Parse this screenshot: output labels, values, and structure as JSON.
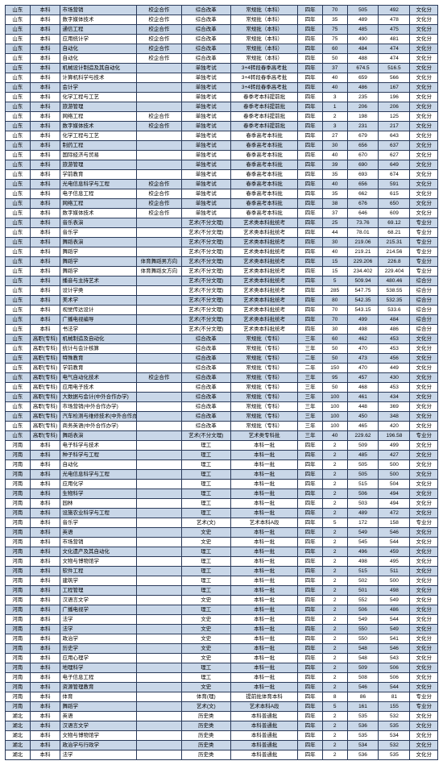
{
  "table": {
    "background_color": "#ffffff",
    "alt_row_color": "#c9d7e8",
    "border_color": "#2a3a5a",
    "font_size": 6.5,
    "columns": [
      {
        "key": "province",
        "align": "center"
      },
      {
        "key": "level",
        "align": "center"
      },
      {
        "key": "major",
        "align": "left"
      },
      {
        "key": "coop",
        "align": "center"
      },
      {
        "key": "reform",
        "align": "center"
      },
      {
        "key": "batch",
        "align": "center"
      },
      {
        "key": "years",
        "align": "center"
      },
      {
        "key": "plan",
        "align": "center"
      },
      {
        "key": "score1",
        "align": "center"
      },
      {
        "key": "score2",
        "align": "center"
      },
      {
        "key": "category",
        "align": "center"
      }
    ],
    "rows": [
      [
        "山东",
        "本科",
        "市场营销",
        "校企合作",
        "综合改革",
        "常规批（本科）",
        "四年",
        "70",
        "505",
        "492",
        "文化分"
      ],
      [
        "山东",
        "本科",
        "数字媒体技术",
        "校企合作",
        "综合改革",
        "常规批（本科）",
        "四年",
        "35",
        "489",
        "478",
        "文化分"
      ],
      [
        "山东",
        "本科",
        "通信工程",
        "校企合作",
        "综合改革",
        "常规批（本科）",
        "四年",
        "75",
        "485",
        "475",
        "文化分"
      ],
      [
        "山东",
        "本科",
        "应用统计学",
        "校企合作",
        "综合改革",
        "常规批（本科）",
        "四年",
        "75",
        "490",
        "481",
        "文化分"
      ],
      [
        "山东",
        "本科",
        "自动化",
        "校企合作",
        "综合改革",
        "常规批（本科）",
        "四年",
        "60",
        "484",
        "474",
        "文化分"
      ],
      [
        "山东",
        "本科",
        "自动化",
        "校企合作",
        "综合改革",
        "常规批（本科）",
        "四年",
        "50",
        "488",
        "474",
        "文化分"
      ],
      [
        "山东",
        "本科",
        "机械设计制造及其自动化",
        "",
        "单独考试",
        "3+4转段春季高考批",
        "四年",
        "37",
        "674.5",
        "516.5",
        "文化分"
      ],
      [
        "山东",
        "本科",
        "计算机科学与技术",
        "",
        "单独考试",
        "3+4转段春季高考批",
        "四年",
        "40",
        "659",
        "566",
        "文化分"
      ],
      [
        "山东",
        "本科",
        "会计学",
        "",
        "单独考试",
        "3+4转段春季高考批",
        "四年",
        "40",
        "486",
        "167",
        "文化分"
      ],
      [
        "山东",
        "本科",
        "化学工程与工艺",
        "",
        "单独考试",
        "春季考本科提前批",
        "四年",
        "3",
        "235",
        "196",
        "文化分"
      ],
      [
        "山东",
        "本科",
        "旅游管理",
        "",
        "单独考试",
        "春季考本科提前批",
        "四年",
        "1",
        "206",
        "206",
        "文化分"
      ],
      [
        "山东",
        "本科",
        "网络工程",
        "校企合作",
        "单独考试",
        "春季考本科提前批",
        "四年",
        "2",
        "198",
        "125",
        "文化分"
      ],
      [
        "山东",
        "本科",
        "数字媒体技术",
        "校企合作",
        "单独考试",
        "春季考本科提前批",
        "四年",
        "3",
        "231",
        "217",
        "文化分"
      ],
      [
        "山东",
        "本科",
        "化学工程与工艺",
        "",
        "单独考试",
        "春季高考本科批",
        "四年",
        "27",
        "679",
        "643",
        "文化分"
      ],
      [
        "山东",
        "本科",
        "制药工程",
        "",
        "单独考试",
        "春季高考本科批",
        "四年",
        "30",
        "656",
        "637",
        "文化分"
      ],
      [
        "山东",
        "本科",
        "国际经济与贸易",
        "",
        "单独考试",
        "春季高考本科批",
        "四年",
        "40",
        "670",
        "627",
        "文化分"
      ],
      [
        "山东",
        "本科",
        "旅游管理",
        "",
        "单独考试",
        "春季高考本科批",
        "四年",
        "39",
        "690",
        "649",
        "文化分"
      ],
      [
        "山东",
        "本科",
        "学前教育",
        "",
        "单独考试",
        "春季高考本科批",
        "四年",
        "35",
        "693",
        "674",
        "文化分"
      ],
      [
        "山东",
        "本科",
        "光电信息科学与工程",
        "校企合作",
        "单独考试",
        "春季高考本科批",
        "四年",
        "40",
        "656",
        "591",
        "文化分"
      ],
      [
        "山东",
        "本科",
        "电子信息工程",
        "校企合作",
        "单独考试",
        "春季高考本科批",
        "四年",
        "35",
        "662",
        "615",
        "文化分"
      ],
      [
        "山东",
        "本科",
        "网络工程",
        "校企合作",
        "单独考试",
        "春季高考本科批",
        "四年",
        "38",
        "676",
        "650",
        "文化分"
      ],
      [
        "山东",
        "本科",
        "数字媒体技术",
        "校企合作",
        "单独考试",
        "春季高考本科批",
        "四年",
        "37",
        "646",
        "609",
        "文化分"
      ],
      [
        "山东",
        "本科",
        "音乐表演",
        "",
        "艺术(不分文理)",
        "艺术类本科批统考",
        "四年",
        "25",
        "73.76",
        "69.12",
        "专业分"
      ],
      [
        "山东",
        "本科",
        "音乐学",
        "",
        "艺术(不分文理)",
        "艺术类本科批统考",
        "四年",
        "44",
        "78.01",
        "68.21",
        "专业分"
      ],
      [
        "山东",
        "本科",
        "舞蹈表演",
        "",
        "艺术(不分文理)",
        "艺术类本科批统考",
        "四年",
        "30",
        "219.06",
        "215.31",
        "专业分"
      ],
      [
        "山东",
        "本科",
        "舞蹈学",
        "",
        "艺术(不分文理)",
        "艺术类本科批统考",
        "四年",
        "40",
        "219.21",
        "214.56",
        "专业分"
      ],
      [
        "山东",
        "本科",
        "舞蹈学",
        "体育舞蹈男方向",
        "艺术(不分文理)",
        "艺术类本科批统考",
        "四年",
        "15",
        "229.206",
        "226.8",
        "专业分"
      ],
      [
        "山东",
        "本科",
        "舞蹈学",
        "体育舞蹈女方向",
        "艺术(不分文理)",
        "艺术类本科批统考",
        "四年",
        "15",
        "234.402",
        "229.404",
        "专业分"
      ],
      [
        "山东",
        "本科",
        "播音与主持艺术",
        "",
        "艺术(不分文理)",
        "艺术类本科批统考",
        "四年",
        "5",
        "509.94",
        "480.46",
        "综合分"
      ],
      [
        "山东",
        "本科",
        "设计学类",
        "",
        "艺术(不分文理)",
        "艺术类本科批统考",
        "四年",
        "285",
        "547.75",
        "538.55",
        "综合分"
      ],
      [
        "山东",
        "本科",
        "美术学",
        "",
        "艺术(不分文理)",
        "艺术类本科批统考",
        "四年",
        "80",
        "542.35",
        "532.35",
        "综合分"
      ],
      [
        "山东",
        "本科",
        "视觉传达设计",
        "",
        "艺术(不分文理)",
        "艺术类本科批统考",
        "四年",
        "70",
        "543.15",
        "533.6",
        "综合分"
      ],
      [
        "山东",
        "本科",
        "广播电视编导",
        "",
        "艺术(不分文理)",
        "艺术类本科批统考",
        "四年",
        "70",
        "499",
        "484",
        "综合分"
      ],
      [
        "山东",
        "本科",
        "书法学",
        "",
        "艺术(不分文理)",
        "艺术类本科批统考",
        "四年",
        "30",
        "498",
        "486",
        "综合分"
      ],
      [
        "山东",
        "高职(专科)",
        "机械制造及自动化",
        "",
        "综合改革",
        "常规批（专科）",
        "三年",
        "60",
        "462",
        "453",
        "文化分"
      ],
      [
        "山东",
        "高职(专科)",
        "统计与会计核算",
        "",
        "综合改革",
        "常规批（专科）",
        "三年",
        "50",
        "470",
        "453",
        "文化分"
      ],
      [
        "山东",
        "高职(专科)",
        "特殊教育",
        "",
        "综合改革",
        "常规批（专科）",
        "二年",
        "50",
        "473",
        "456",
        "文化分"
      ],
      [
        "山东",
        "高职(专科)",
        "学前教育",
        "",
        "综合改革",
        "常规批（专科）",
        "二年",
        "150",
        "470",
        "449",
        "文化分"
      ],
      [
        "山东",
        "高职(专科)",
        "电气自动化技术",
        "校企合作",
        "综合改革",
        "常规批（专科）",
        "三年",
        "95",
        "457",
        "430",
        "文化分"
      ],
      [
        "山东",
        "高职(专科)",
        "应用电子技术",
        "",
        "综合改革",
        "常规批（专科）",
        "三年",
        "50",
        "468",
        "453",
        "文化分"
      ],
      [
        "山东",
        "高职(专科)",
        "大数据与会计(中外合作办学)",
        "",
        "综合改革",
        "常规批（专科）",
        "三年",
        "100",
        "461",
        "434",
        "文化分"
      ],
      [
        "山东",
        "高职(专科)",
        "市场营销(中外合作办学)",
        "",
        "综合改革",
        "常规批（专科）",
        "三年",
        "100",
        "448",
        "369",
        "文化分"
      ],
      [
        "山东",
        "高职(专科)",
        "汽车检测与维修技术(中外合作办学)",
        "",
        "综合改革",
        "常规批（专科）",
        "三年",
        "100",
        "450",
        "348",
        "文化分"
      ],
      [
        "山东",
        "高职(专科)",
        "商务英语(中外合作办学)",
        "",
        "综合改革",
        "常规批（专科）",
        "三年",
        "100",
        "465",
        "420",
        "文化分"
      ],
      [
        "山东",
        "高职(专科)",
        "舞蹈表演",
        "",
        "艺术(不分文理)",
        "艺术类专科批",
        "三年",
        "40",
        "229.62",
        "196.58",
        "专业分"
      ],
      [
        "河南",
        "本科",
        "电子科学与技术",
        "",
        "理工",
        "本科一批",
        "四年",
        "2",
        "509",
        "499",
        "文化分"
      ],
      [
        "河南",
        "本科",
        "种子科学与工程",
        "",
        "理工",
        "本科一批",
        "四年",
        "2",
        "485",
        "427",
        "文化分"
      ],
      [
        "河南",
        "本科",
        "自动化",
        "",
        "理工",
        "本科一批",
        "四年",
        "2",
        "505",
        "500",
        "文化分"
      ],
      [
        "河南",
        "本科",
        "光电信息科学与工程",
        "",
        "理工",
        "本科一批",
        "四年",
        "2",
        "505",
        "500",
        "文化分"
      ],
      [
        "河南",
        "本科",
        "应用化学",
        "",
        "理工",
        "本科一批",
        "四年",
        "2",
        "515",
        "504",
        "文化分"
      ],
      [
        "河南",
        "本科",
        "生物科学",
        "",
        "理工",
        "本科一批",
        "四年",
        "2",
        "506",
        "494",
        "文化分"
      ],
      [
        "河南",
        "本科",
        "园林",
        "",
        "理工",
        "本科一批",
        "四年",
        "2",
        "503",
        "494",
        "文化分"
      ],
      [
        "河南",
        "本科",
        "设施农业科学与工程",
        "",
        "理工",
        "本科一批",
        "四年",
        "2",
        "489",
        "472",
        "文化分"
      ],
      [
        "河南",
        "本科",
        "音乐学",
        "",
        "艺术(文)",
        "艺术本科A段",
        "四年",
        "5",
        "172",
        "158",
        "专业分"
      ],
      [
        "河南",
        "本科",
        "英语",
        "",
        "文史",
        "本科一批",
        "四年",
        "2",
        "549",
        "546",
        "文化分"
      ],
      [
        "河南",
        "本科",
        "市场营销",
        "",
        "文史",
        "本科一批",
        "四年",
        "2",
        "545",
        "544",
        "文化分"
      ],
      [
        "河南",
        "本科",
        "文化遗产及其自动化",
        "",
        "理工",
        "本科一批",
        "四年",
        "2",
        "496",
        "459",
        "文化分"
      ],
      [
        "河南",
        "本科",
        "文物与博物馆学",
        "",
        "理工",
        "本科一批",
        "四年",
        "2",
        "498",
        "495",
        "文化分"
      ],
      [
        "河南",
        "本科",
        "软件工程",
        "",
        "理工",
        "本科一批",
        "四年",
        "2",
        "515",
        "511",
        "文化分"
      ],
      [
        "河南",
        "本科",
        "建筑学",
        "",
        "理工",
        "本科一批",
        "四年",
        "2",
        "502",
        "500",
        "文化分"
      ],
      [
        "河南",
        "本科",
        "工程管理",
        "",
        "理工",
        "本科一批",
        "四年",
        "2",
        "501",
        "498",
        "文化分"
      ],
      [
        "河南",
        "本科",
        "汉语言文学",
        "",
        "文史",
        "本科一批",
        "四年",
        "2",
        "552",
        "549",
        "文化分"
      ],
      [
        "河南",
        "本科",
        "广播电视学",
        "",
        "理工",
        "本科一批",
        "四年",
        "2",
        "506",
        "486",
        "文化分"
      ],
      [
        "河南",
        "本科",
        "法学",
        "",
        "文史",
        "本科一批",
        "四年",
        "2",
        "549",
        "544",
        "文化分"
      ],
      [
        "河南",
        "本科",
        "法学",
        "",
        "文史",
        "本科一批",
        "四年",
        "2",
        "550",
        "549",
        "文化分"
      ],
      [
        "河南",
        "本科",
        "政治学",
        "",
        "文史",
        "本科一批",
        "四年",
        "2",
        "550",
        "541",
        "文化分"
      ],
      [
        "河南",
        "本科",
        "历史学",
        "",
        "文史",
        "本科一批",
        "四年",
        "2",
        "548",
        "546",
        "文化分"
      ],
      [
        "河南",
        "本科",
        "应用心理学",
        "",
        "文史",
        "本科一批",
        "四年",
        "2",
        "548",
        "543",
        "文化分"
      ],
      [
        "河南",
        "本科",
        "地理科学",
        "",
        "理工",
        "本科一批",
        "四年",
        "2",
        "509",
        "506",
        "文化分"
      ],
      [
        "河南",
        "本科",
        "电子信息工程",
        "",
        "理工",
        "本科一批",
        "四年",
        "2",
        "508",
        "506",
        "文化分"
      ],
      [
        "河南",
        "本科",
        "资源管理教育",
        "",
        "文史",
        "本科一批",
        "四年",
        "2",
        "546",
        "544",
        "文化分"
      ],
      [
        "河南",
        "本科",
        "体育",
        "",
        "体育(理)",
        "提前批体育本科",
        "四年",
        "8",
        "86",
        "81",
        "专业分"
      ],
      [
        "河南",
        "本科",
        "舞蹈学",
        "",
        "艺术(文)",
        "艺术本科A段",
        "四年",
        "5",
        "161",
        "155",
        "专业分"
      ],
      [
        "湖北",
        "本科",
        "英语",
        "",
        "历史类",
        "本科普通批",
        "四年",
        "2",
        "535",
        "532",
        "文化分"
      ],
      [
        "湖北",
        "本科",
        "汉语言文学",
        "",
        "历史类",
        "本科普通批",
        "四年",
        "2",
        "536",
        "535",
        "文化分"
      ],
      [
        "湖北",
        "本科",
        "文物与博物馆学",
        "",
        "历史类",
        "本科普通批",
        "四年",
        "2",
        "535",
        "534",
        "文化分"
      ],
      [
        "湖北",
        "本科",
        "政治学与行政学",
        "",
        "历史类",
        "本科普通批",
        "四年",
        "2",
        "534",
        "532",
        "文化分"
      ],
      [
        "湖北",
        "本科",
        "法学",
        "",
        "历史类",
        "本科普通批",
        "四年",
        "2",
        "536",
        "535",
        "文化分"
      ]
    ]
  }
}
